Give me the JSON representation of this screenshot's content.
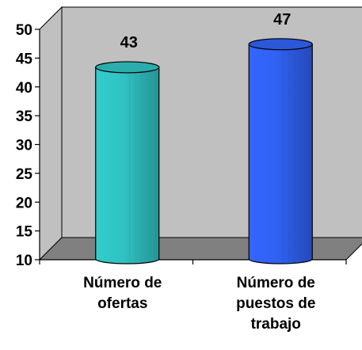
{
  "chart_data": {
    "type": "bar",
    "title": "",
    "xlabel": "",
    "ylabel": "",
    "categories": [
      [
        "Número de",
        "ofertas"
      ],
      [
        "Número de",
        "puestos de",
        "trabajo"
      ]
    ],
    "values": [
      43,
      47
    ],
    "data_labels": [
      "43",
      "47"
    ],
    "ylim": [
      10,
      50
    ],
    "yticks": [
      10,
      15,
      20,
      25,
      30,
      35,
      40,
      45,
      50
    ],
    "grid": false,
    "legend": "none",
    "style": "3d-cylinder",
    "colors": {
      "walls": "#c0c0c0",
      "floor": "#808080",
      "bar_1": "#33cccc",
      "bar_2": "#3366ff",
      "edge": "#000000"
    }
  }
}
